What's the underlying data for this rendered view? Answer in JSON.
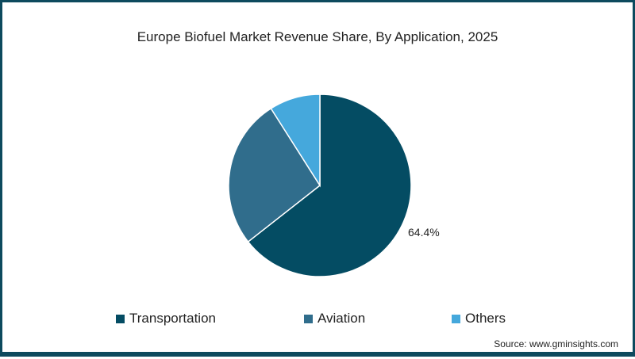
{
  "chart_data": {
    "type": "pie",
    "title": "Europe Biofuel Market Revenue Share, By Application, 2025",
    "categories": [
      "Transportation",
      "Aviation",
      "Others"
    ],
    "values": [
      64.4,
      26.6,
      9.0
    ],
    "colors": [
      "#044c63",
      "#306d8c",
      "#45a8dc"
    ],
    "labels_shown": [
      {
        "category": "Transportation",
        "text": "64.4%"
      }
    ],
    "legend_position": "bottom",
    "source": "Source: www.gminsights.com"
  },
  "header": {
    "title": "Europe Biofuel Market Revenue Share, By Application, 2025"
  },
  "slice_label": "64.4%",
  "legend": [
    {
      "label": "Transportation",
      "color": "#044c63"
    },
    {
      "label": "Aviation",
      "color": "#306d8c"
    },
    {
      "label": "Others",
      "color": "#45a8dc"
    }
  ],
  "footer": {
    "source": "Source: www.gminsights.com"
  }
}
